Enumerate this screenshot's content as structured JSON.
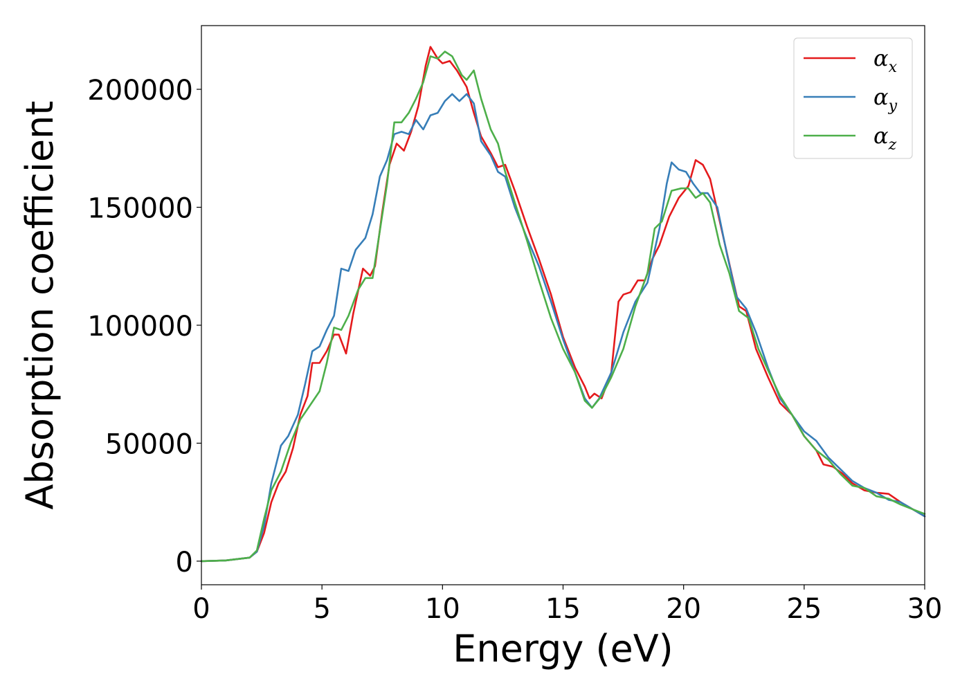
{
  "chart_data": {
    "type": "line",
    "title": "",
    "xlabel": "Energy (eV)",
    "ylabel": "Absorption coefficient",
    "xlim": [
      0,
      30
    ],
    "ylim": [
      -10000,
      227000
    ],
    "xticks": [
      0,
      5,
      10,
      15,
      20,
      25,
      30
    ],
    "xtick_labels": [
      "0",
      "5",
      "10",
      "15",
      "20",
      "25",
      "30"
    ],
    "yticks": [
      0,
      50000,
      100000,
      150000,
      200000
    ],
    "ytick_labels": [
      "0",
      "50000",
      "100000",
      "150000",
      "200000"
    ],
    "grid": false,
    "legend_position": "top-right",
    "series": [
      {
        "name": "α_x",
        "label_main": "α",
        "label_sub": "x",
        "color": "#e41a1c",
        "points": [
          [
            0,
            0
          ],
          [
            1,
            300
          ],
          [
            2,
            1500
          ],
          [
            2.3,
            4000
          ],
          [
            2.6,
            12000
          ],
          [
            2.9,
            25000
          ],
          [
            3.2,
            33000
          ],
          [
            3.5,
            38000
          ],
          [
            3.8,
            48000
          ],
          [
            4.1,
            62000
          ],
          [
            4.4,
            70000
          ],
          [
            4.6,
            84000
          ],
          [
            4.9,
            84000
          ],
          [
            5.2,
            89000
          ],
          [
            5.5,
            96000
          ],
          [
            5.7,
            96000
          ],
          [
            6.0,
            88000
          ],
          [
            6.3,
            105000
          ],
          [
            6.7,
            124000
          ],
          [
            7.0,
            121000
          ],
          [
            7.2,
            125000
          ],
          [
            7.5,
            148000
          ],
          [
            7.8,
            168000
          ],
          [
            8.1,
            177000
          ],
          [
            8.4,
            174000
          ],
          [
            8.7,
            182000
          ],
          [
            9.0,
            193000
          ],
          [
            9.3,
            210000
          ],
          [
            9.5,
            218000
          ],
          [
            9.8,
            213000
          ],
          [
            10.0,
            211000
          ],
          [
            10.3,
            212000
          ],
          [
            10.6,
            208000
          ],
          [
            11.0,
            201000
          ],
          [
            11.3,
            190000
          ],
          [
            11.6,
            180000
          ],
          [
            12.0,
            173000
          ],
          [
            12.3,
            167000
          ],
          [
            12.6,
            168000
          ],
          [
            13.0,
            157000
          ],
          [
            13.5,
            142000
          ],
          [
            14.0,
            128000
          ],
          [
            14.5,
            113000
          ],
          [
            15.0,
            95000
          ],
          [
            15.5,
            82000
          ],
          [
            15.9,
            74000
          ],
          [
            16.1,
            69000
          ],
          [
            16.3,
            71000
          ],
          [
            16.6,
            69000
          ],
          [
            17.0,
            80000
          ],
          [
            17.3,
            110000
          ],
          [
            17.5,
            113000
          ],
          [
            17.8,
            114000
          ],
          [
            18.1,
            119000
          ],
          [
            18.4,
            119000
          ],
          [
            18.7,
            128000
          ],
          [
            19.0,
            134000
          ],
          [
            19.4,
            146000
          ],
          [
            19.8,
            154000
          ],
          [
            20.2,
            159000
          ],
          [
            20.5,
            170000
          ],
          [
            20.8,
            168000
          ],
          [
            21.1,
            162000
          ],
          [
            21.5,
            144000
          ],
          [
            21.9,
            126000
          ],
          [
            22.3,
            108000
          ],
          [
            22.6,
            106000
          ],
          [
            23.0,
            90000
          ],
          [
            23.5,
            78000
          ],
          [
            24.0,
            67000
          ],
          [
            24.5,
            62000
          ],
          [
            25.0,
            53000
          ],
          [
            25.5,
            47000
          ],
          [
            25.8,
            41000
          ],
          [
            26.2,
            40000
          ],
          [
            26.6,
            37000
          ],
          [
            27.0,
            33000
          ],
          [
            27.5,
            30000
          ],
          [
            28.0,
            29000
          ],
          [
            28.5,
            28500
          ],
          [
            29.0,
            25000
          ],
          [
            29.5,
            22000
          ],
          [
            30.0,
            19000
          ]
        ]
      },
      {
        "name": "α_y",
        "label_main": "α",
        "label_sub": "y",
        "color": "#377eb8",
        "points": [
          [
            0,
            0
          ],
          [
            1,
            300
          ],
          [
            2,
            1500
          ],
          [
            2.3,
            4000
          ],
          [
            2.6,
            15000
          ],
          [
            2.9,
            33000
          ],
          [
            3.3,
            49000
          ],
          [
            3.6,
            53000
          ],
          [
            4.0,
            62000
          ],
          [
            4.3,
            75000
          ],
          [
            4.6,
            89000
          ],
          [
            4.9,
            91000
          ],
          [
            5.2,
            98000
          ],
          [
            5.5,
            104000
          ],
          [
            5.8,
            124000
          ],
          [
            6.1,
            123000
          ],
          [
            6.4,
            132000
          ],
          [
            6.8,
            137000
          ],
          [
            7.1,
            147000
          ],
          [
            7.4,
            163000
          ],
          [
            7.7,
            170000
          ],
          [
            8.0,
            181000
          ],
          [
            8.3,
            182000
          ],
          [
            8.6,
            181000
          ],
          [
            8.9,
            187000
          ],
          [
            9.2,
            183000
          ],
          [
            9.5,
            189000
          ],
          [
            9.8,
            190000
          ],
          [
            10.1,
            195000
          ],
          [
            10.4,
            198000
          ],
          [
            10.7,
            195000
          ],
          [
            11.0,
            198000
          ],
          [
            11.3,
            194000
          ],
          [
            11.6,
            178000
          ],
          [
            12.0,
            172000
          ],
          [
            12.3,
            165000
          ],
          [
            12.6,
            163000
          ],
          [
            13.0,
            150000
          ],
          [
            13.5,
            137000
          ],
          [
            14.0,
            125000
          ],
          [
            14.5,
            110000
          ],
          [
            15.0,
            94000
          ],
          [
            15.5,
            80000
          ],
          [
            15.9,
            69000
          ],
          [
            16.2,
            65000
          ],
          [
            16.5,
            69000
          ],
          [
            17.0,
            80000
          ],
          [
            17.5,
            97000
          ],
          [
            18.0,
            110000
          ],
          [
            18.5,
            118000
          ],
          [
            19.0,
            141000
          ],
          [
            19.3,
            160000
          ],
          [
            19.5,
            169000
          ],
          [
            19.8,
            166000
          ],
          [
            20.1,
            165000
          ],
          [
            20.4,
            160000
          ],
          [
            20.7,
            156000
          ],
          [
            21.0,
            156000
          ],
          [
            21.4,
            150000
          ],
          [
            21.8,
            130000
          ],
          [
            22.2,
            112000
          ],
          [
            22.6,
            107000
          ],
          [
            23.0,
            97000
          ],
          [
            23.5,
            82000
          ],
          [
            24.0,
            69000
          ],
          [
            24.5,
            62000
          ],
          [
            25.0,
            55000
          ],
          [
            25.5,
            51000
          ],
          [
            26.0,
            44000
          ],
          [
            26.5,
            39000
          ],
          [
            27.0,
            34000
          ],
          [
            27.5,
            31000
          ],
          [
            28.0,
            29000
          ],
          [
            28.5,
            26000
          ],
          [
            29.0,
            25000
          ],
          [
            29.5,
            22000
          ],
          [
            30.0,
            19000
          ]
        ]
      },
      {
        "name": "α_z",
        "label_main": "α",
        "label_sub": "z",
        "color": "#4daf4a",
        "points": [
          [
            0,
            0
          ],
          [
            1,
            300
          ],
          [
            2,
            1500
          ],
          [
            2.3,
            4500
          ],
          [
            2.6,
            18000
          ],
          [
            2.9,
            30000
          ],
          [
            3.3,
            38000
          ],
          [
            3.7,
            50000
          ],
          [
            4.1,
            60000
          ],
          [
            4.5,
            66000
          ],
          [
            4.9,
            72000
          ],
          [
            5.2,
            84000
          ],
          [
            5.5,
            99000
          ],
          [
            5.8,
            98000
          ],
          [
            6.1,
            104000
          ],
          [
            6.5,
            115000
          ],
          [
            6.8,
            120000
          ],
          [
            7.1,
            120000
          ],
          [
            7.4,
            140000
          ],
          [
            7.7,
            160000
          ],
          [
            8.0,
            186000
          ],
          [
            8.3,
            186000
          ],
          [
            8.6,
            190000
          ],
          [
            8.9,
            196000
          ],
          [
            9.2,
            203000
          ],
          [
            9.5,
            214000
          ],
          [
            9.8,
            213000
          ],
          [
            10.1,
            216000
          ],
          [
            10.4,
            214000
          ],
          [
            10.8,
            206000
          ],
          [
            11.0,
            204000
          ],
          [
            11.3,
            208000
          ],
          [
            11.6,
            196000
          ],
          [
            12.0,
            183000
          ],
          [
            12.3,
            177000
          ],
          [
            12.6,
            165000
          ],
          [
            13.0,
            152000
          ],
          [
            13.5,
            136000
          ],
          [
            14.0,
            119000
          ],
          [
            14.5,
            103000
          ],
          [
            15.0,
            90000
          ],
          [
            15.5,
            80000
          ],
          [
            15.9,
            68000
          ],
          [
            16.2,
            65000
          ],
          [
            16.6,
            70000
          ],
          [
            17.0,
            78000
          ],
          [
            17.5,
            90000
          ],
          [
            18.0,
            108000
          ],
          [
            18.5,
            122000
          ],
          [
            18.8,
            141000
          ],
          [
            19.1,
            144000
          ],
          [
            19.5,
            157000
          ],
          [
            19.9,
            158000
          ],
          [
            20.2,
            158000
          ],
          [
            20.5,
            154000
          ],
          [
            20.8,
            156000
          ],
          [
            21.1,
            152000
          ],
          [
            21.5,
            134000
          ],
          [
            21.9,
            122000
          ],
          [
            22.3,
            106000
          ],
          [
            22.7,
            103000
          ],
          [
            23.1,
            90000
          ],
          [
            23.5,
            81000
          ],
          [
            24.0,
            70000
          ],
          [
            24.5,
            62000
          ],
          [
            25.0,
            53000
          ],
          [
            25.5,
            47000
          ],
          [
            26.0,
            43000
          ],
          [
            26.5,
            37000
          ],
          [
            27.0,
            32000
          ],
          [
            27.5,
            31000
          ],
          [
            28.0,
            27500
          ],
          [
            28.5,
            26500
          ],
          [
            29.0,
            24000
          ],
          [
            29.5,
            22000
          ],
          [
            30.0,
            20000
          ]
        ]
      }
    ]
  }
}
